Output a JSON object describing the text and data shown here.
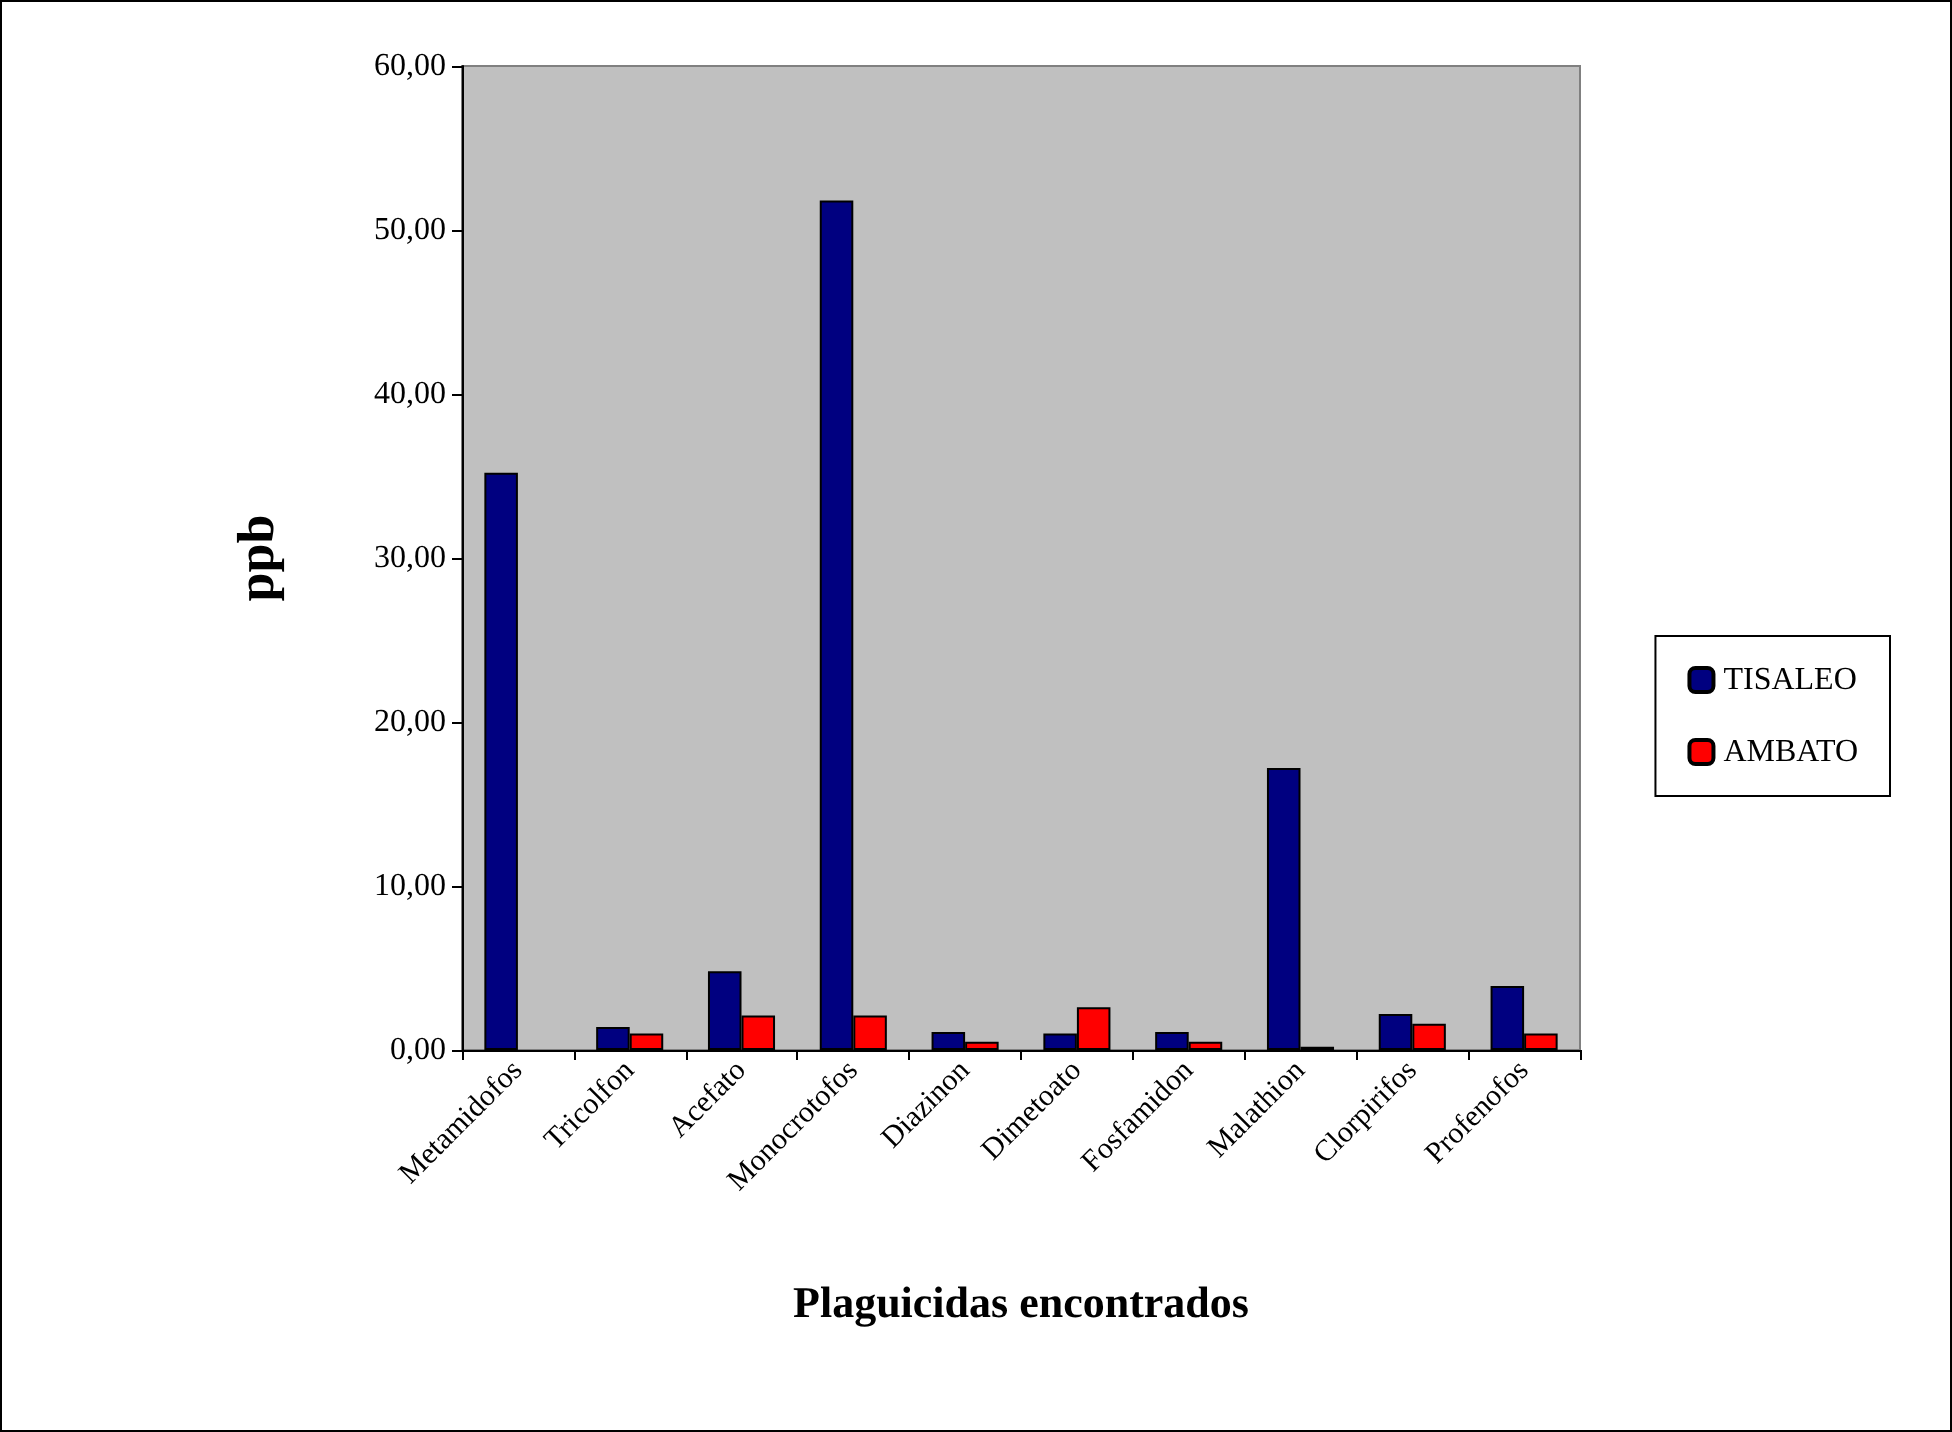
{
  "chart_data": {
    "type": "bar",
    "xlabel": "Plaguicidas encontrados",
    "ylabel": "ppb",
    "categories": [
      "Metamidofos",
      "Tricolfon",
      "Acefato",
      "Monocrotofos",
      "Diazinon",
      "Dimetoato",
      "Fosfamidon",
      "Malathion",
      "Clorpirifos",
      "Profenofos"
    ],
    "series": [
      {
        "name": "TISALEO",
        "color": "#000080",
        "values": [
          35.2,
          1.4,
          4.8,
          51.8,
          1.1,
          1.0,
          1.1,
          17.2,
          2.2,
          3.9
        ]
      },
      {
        "name": "AMBATO",
        "color": "#ff0000",
        "values": [
          null,
          1.0,
          2.1,
          2.1,
          0.5,
          2.6,
          0.5,
          0.2,
          1.6,
          1.0
        ]
      }
    ],
    "ylim": [
      0,
      60
    ],
    "yticks": [
      {
        "value": 0,
        "label": "0,00"
      },
      {
        "value": 10,
        "label": "10,00"
      },
      {
        "value": 20,
        "label": "20,00"
      },
      {
        "value": 30,
        "label": "30,00"
      },
      {
        "value": 40,
        "label": "40,00"
      },
      {
        "value": 50,
        "label": "50,00"
      },
      {
        "value": 60,
        "label": "60,00"
      }
    ],
    "grid": false,
    "legend": "right"
  }
}
